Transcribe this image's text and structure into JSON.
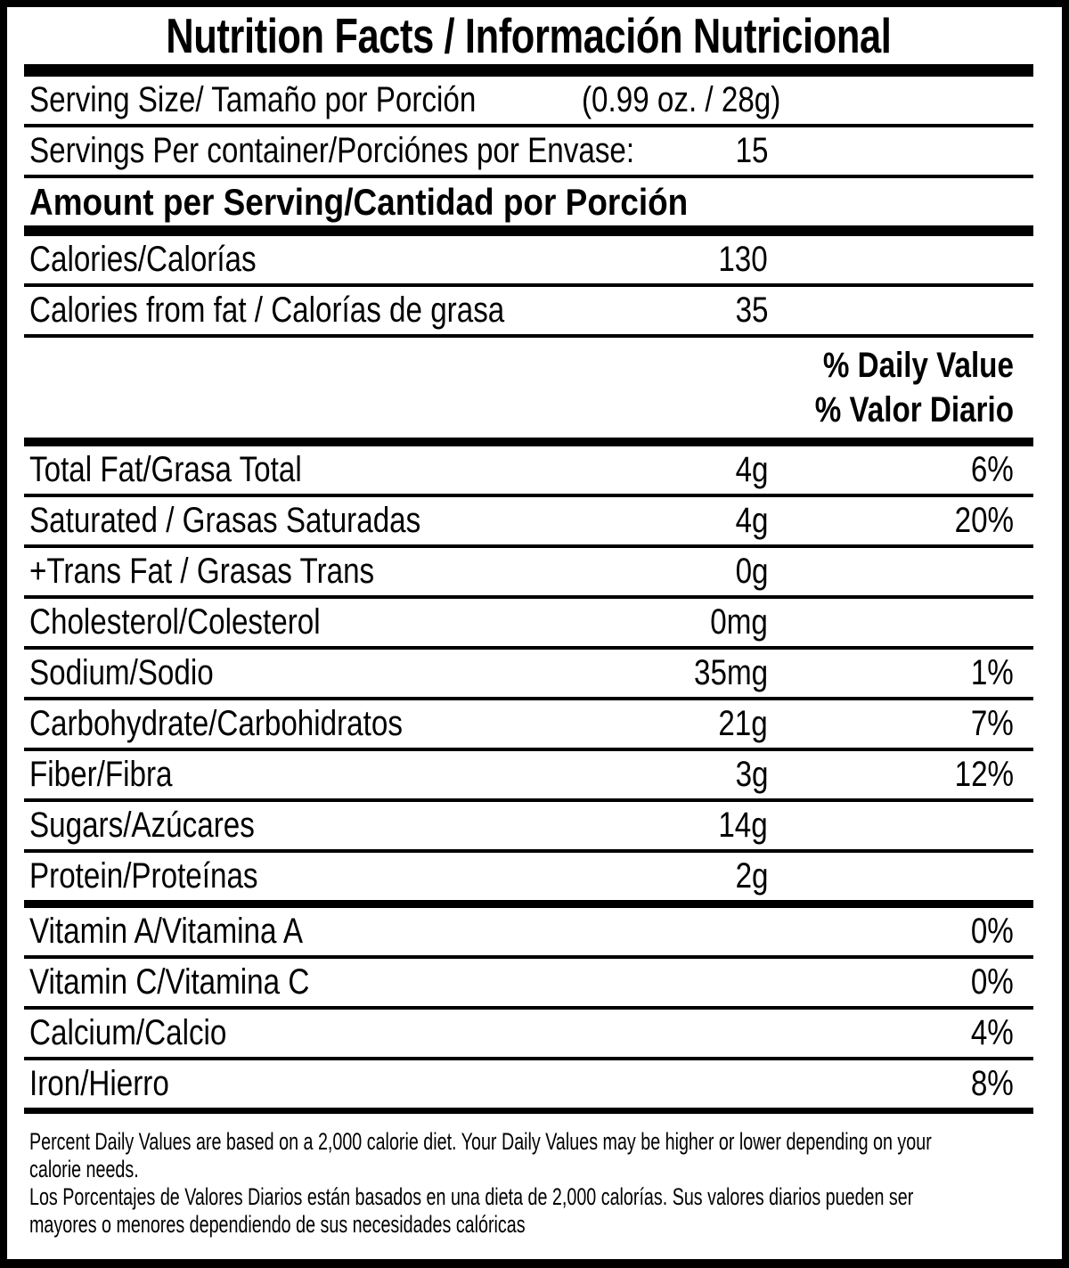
{
  "colors": {
    "ink": "#000000",
    "paper": "#ffffff"
  },
  "title": "Nutrition Facts / Información Nutricional",
  "serving_size": {
    "label": "Serving Size/ Tamaño por Porción",
    "value": "(0.99 oz. / 28g)"
  },
  "servings_per_container": {
    "label": "Servings Per container/Porciónes por Envase:",
    "value": "15"
  },
  "amount_per_serving_header": "Amount per Serving/Cantidad por Porción",
  "calories": {
    "label": "Calories/Calorías",
    "value": "130"
  },
  "calories_from_fat": {
    "label": "Calories from fat / Calorías de grasa",
    "value": "35"
  },
  "daily_value_header": {
    "en": "% Daily Value",
    "es": "% Valor Diario"
  },
  "nutrients": [
    {
      "label": "Total Fat/Grasa Total",
      "amount": "4g",
      "dv": "6%"
    },
    {
      "label": "Saturated / Grasas Saturadas",
      "amount": "4g",
      "dv": "20%"
    },
    {
      "label": "+Trans Fat / Grasas Trans",
      "amount": "0g",
      "dv": ""
    },
    {
      "label": "Cholesterol/Colesterol",
      "amount": "0mg",
      "dv": ""
    },
    {
      "label": "Sodium/Sodio",
      "amount": "35mg",
      "dv": "1%"
    },
    {
      "label": "Carbohydrate/Carbohidratos",
      "amount": "21g",
      "dv": "7%"
    },
    {
      "label": "Fiber/Fibra",
      "amount": "3g",
      "dv": "12%"
    },
    {
      "label": "Sugars/Azúcares",
      "amount": "14g",
      "dv": ""
    },
    {
      "label": "Protein/Proteínas",
      "amount": "2g",
      "dv": ""
    },
    {
      "label": "Vitamin A/Vitamina A",
      "amount": "",
      "dv": "0%"
    },
    {
      "label": "Vitamin C/Vitamina C",
      "amount": "",
      "dv": "0%"
    },
    {
      "label": "Calcium/Calcio",
      "amount": "",
      "dv": "4%"
    },
    {
      "label": "Iron/Hierro",
      "amount": "",
      "dv": "8%"
    }
  ],
  "footnote": {
    "en_lines": [
      "Percent Daily Values are based on a 2,000 calorie diet. Your Daily Values may be higher or lower depending on your",
      "calorie needs."
    ],
    "es_lines": [
      "Los Porcentajes de Valores Diarios están basados en una dieta de 2,000 calorías. Sus valores diarios pueden ser",
      "mayores o menores dependiendo de sus necesidades calóricas"
    ]
  }
}
